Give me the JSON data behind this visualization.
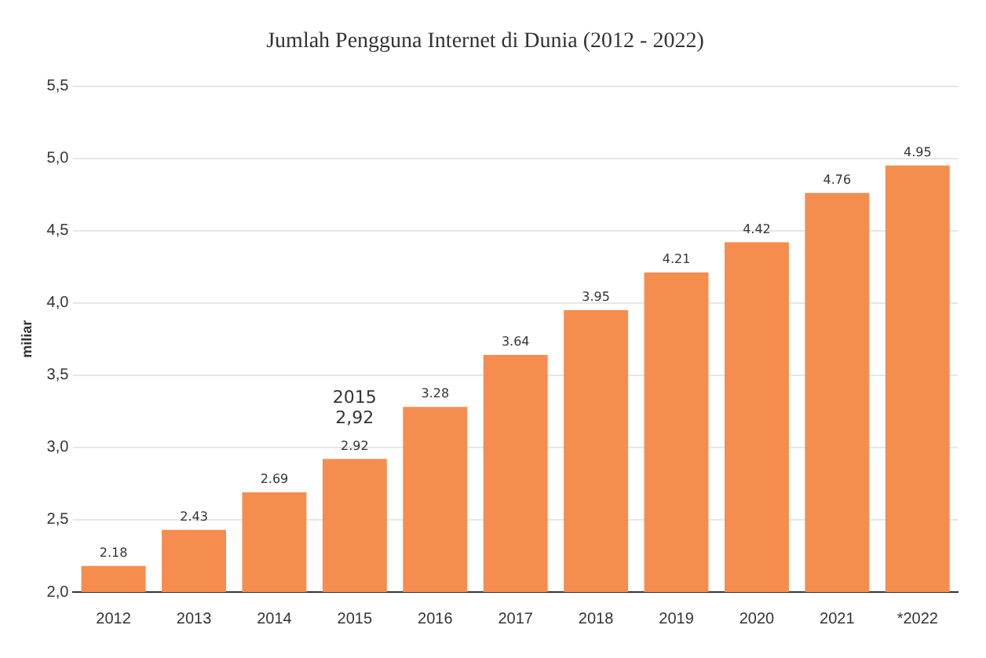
{
  "chart_data": {
    "type": "bar",
    "title": "Jumlah Pengguna Internet di Dunia (2012 - 2022)",
    "ylabel": "miliar",
    "categories": [
      "2012",
      "2013",
      "2014",
      "2015",
      "2016",
      "2017",
      "2018",
      "2019",
      "2020",
      "2021",
      "*2022"
    ],
    "values": [
      2.18,
      2.43,
      2.69,
      2.92,
      3.28,
      3.64,
      3.95,
      4.21,
      4.42,
      4.76,
      4.95
    ],
    "color": "#f58d4f",
    "data_labels": true,
    "grid": "y",
    "ylim": [
      2,
      5.5
    ],
    "yticks": [
      {
        "value": 2,
        "label": "2,0"
      },
      {
        "value": 2.5,
        "label": "2,5"
      },
      {
        "value": 3,
        "label": "3,0"
      },
      {
        "value": 3.5,
        "label": "3,5"
      },
      {
        "value": 4,
        "label": "4,0"
      },
      {
        "value": 4.5,
        "label": "4,5"
      },
      {
        "value": 5,
        "label": "5,0"
      },
      {
        "value": 5.5,
        "label": "5,5"
      }
    ],
    "annotations": [
      {
        "text": "2015\n2,92",
        "x": "2015",
        "y": 2.92
      }
    ]
  }
}
